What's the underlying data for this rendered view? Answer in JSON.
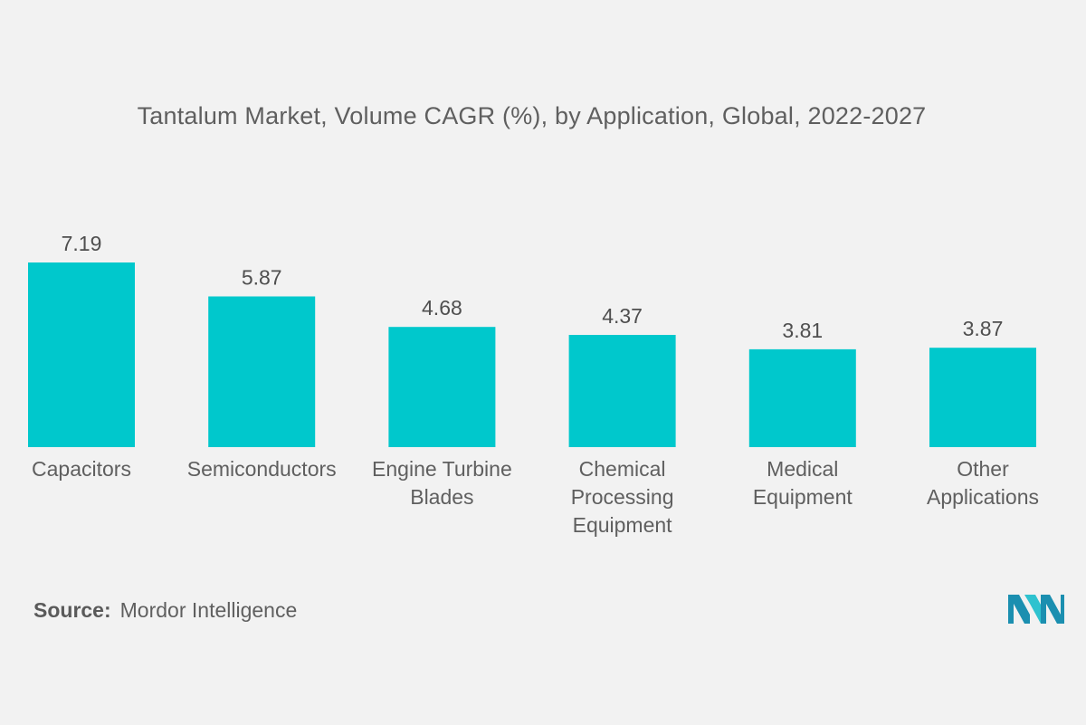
{
  "chart_data": {
    "type": "bar",
    "title": "Tantalum Market, Volume CAGR (%), by Application, Global, 2022-2027",
    "xlabel": "",
    "ylabel": "",
    "categories": [
      "Capacitors",
      "Semiconductors",
      "Engine Turbine Blades",
      "Chemical Processing Equipment",
      "Medical Equipment",
      "Other Applications"
    ],
    "category_lines": [
      [
        "Capacitors"
      ],
      [
        "Semiconductors"
      ],
      [
        "Engine Turbine",
        "Blades"
      ],
      [
        "Chemical",
        "Processing",
        "Equipment"
      ],
      [
        "Medical",
        "Equipment"
      ],
      [
        "Other",
        "Applications"
      ]
    ],
    "values": [
      7.19,
      5.87,
      4.68,
      4.37,
      3.81,
      3.87
    ],
    "value_labels": [
      "7.19",
      "5.87",
      "4.68",
      "4.37",
      "3.81",
      "3.87"
    ],
    "ylim": [
      0,
      7.19
    ],
    "grid": false,
    "legend": "none",
    "bar_color": "#00c8cc"
  },
  "footer": {
    "source_label": "Source:",
    "source_text": "Mordor Intelligence"
  },
  "logo": {
    "icon": "mordor-intelligence-logo-icon",
    "colors": [
      "#1b8fb0",
      "#2fc2cf"
    ]
  }
}
